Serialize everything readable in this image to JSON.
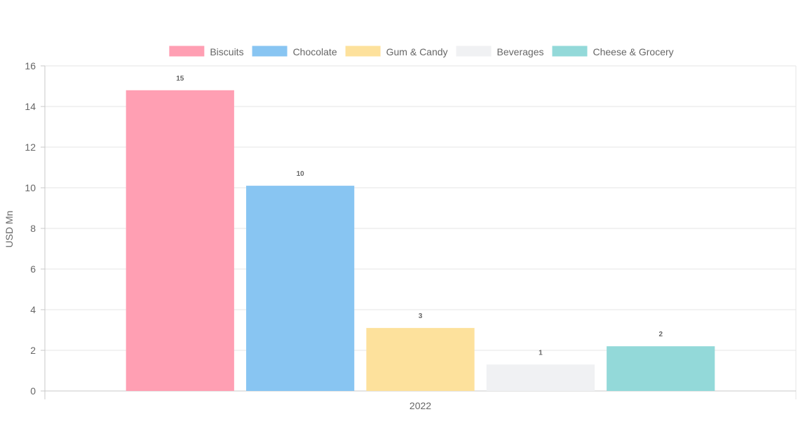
{
  "chart_data": {
    "type": "bar",
    "categories": [
      "2022"
    ],
    "series": [
      {
        "name": "Biscuits",
        "values": [
          14.8
        ],
        "label": "15",
        "color": "#ff9fb3"
      },
      {
        "name": "Chocolate",
        "values": [
          10.1
        ],
        "label": "10",
        "color": "#88c5f2"
      },
      {
        "name": "Gum & Candy",
        "values": [
          3.1
        ],
        "label": "3",
        "color": "#fde19c"
      },
      {
        "name": "Beverages",
        "values": [
          1.3
        ],
        "label": "1",
        "color": "#f0f1f3"
      },
      {
        "name": "Cheese & Grocery",
        "values": [
          2.2
        ],
        "label": "2",
        "color": "#93d9d9"
      }
    ],
    "title": "",
    "xlabel": "",
    "ylabel": "USD Mn",
    "ylim": [
      0,
      16
    ],
    "yticks": [
      0,
      2,
      4,
      6,
      8,
      10,
      12,
      14,
      16
    ],
    "grid": true,
    "legend_position": "top-center"
  }
}
